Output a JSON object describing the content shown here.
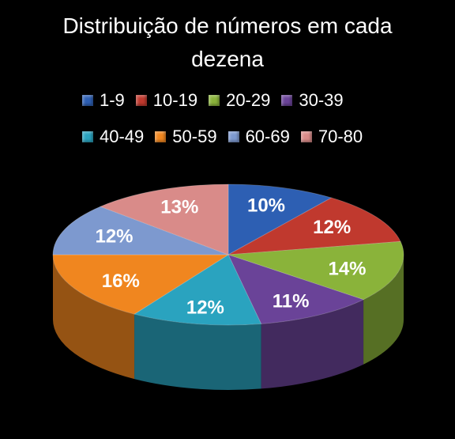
{
  "chart_data": {
    "type": "pie",
    "title": "Distribuição de números em cada dezena",
    "legend_position": "top",
    "categories": [
      "1-9",
      "10-19",
      "20-29",
      "30-39",
      "40-49",
      "50-59",
      "60-69",
      "70-80"
    ],
    "values": [
      10,
      12,
      14,
      11,
      12,
      16,
      12,
      13
    ],
    "labels": [
      "10%",
      "12%",
      "14%",
      "11%",
      "12%",
      "16%",
      "12%",
      "13%"
    ],
    "colors": [
      "#2d5fb3",
      "#c0392e",
      "#8ab33a",
      "#6a4398",
      "#2aa3bf",
      "#f0861f",
      "#7d99cf",
      "#d98b89"
    ]
  }
}
